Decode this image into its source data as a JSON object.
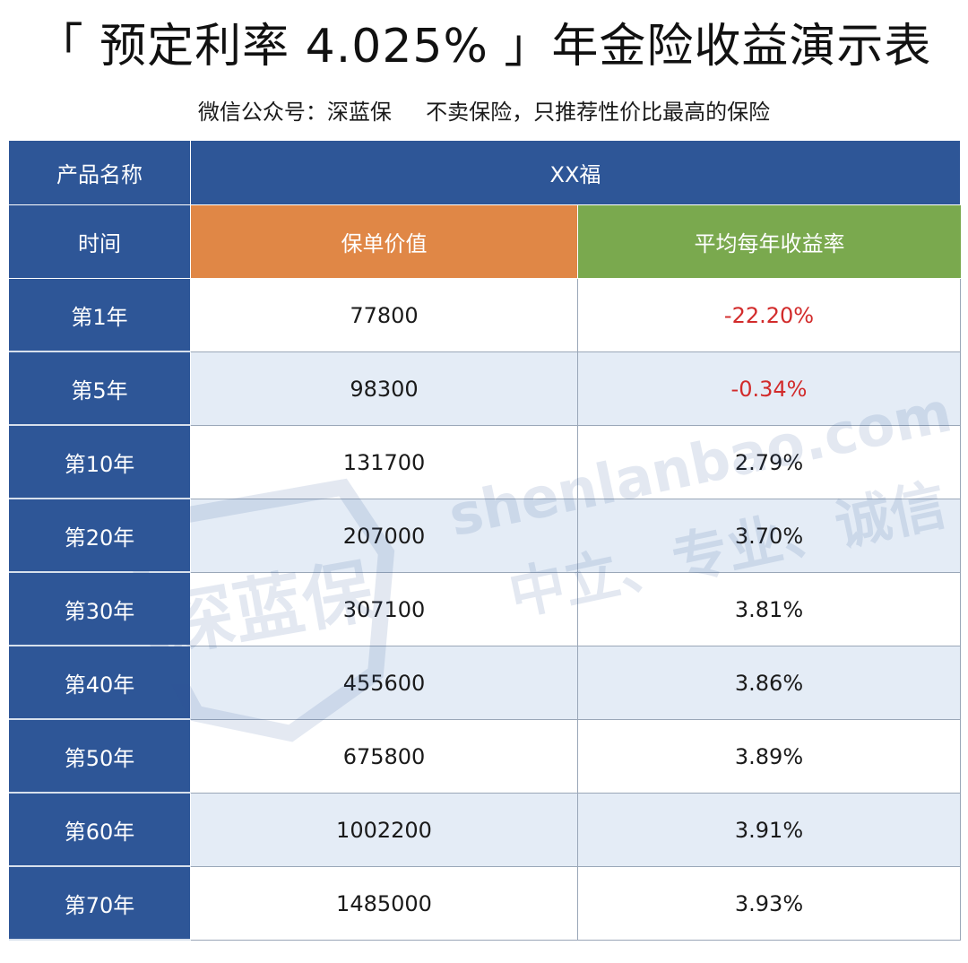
{
  "title": "「 预定利率 4.025% 」年金险收益演示表",
  "subtitle": "微信公众号：深蓝保     不卖保险，只推荐性价比最高的保险",
  "table": {
    "product_label": "产品名称",
    "product_name": "XX福",
    "time_label": "时间",
    "value_label": "保单价值",
    "rate_label": "平均每年收益率",
    "rows": [
      {
        "year": "第1年",
        "value": "77800",
        "rate": "-22.20%",
        "negative": true
      },
      {
        "year": "第5年",
        "value": "98300",
        "rate": "-0.34%",
        "negative": true
      },
      {
        "year": "第10年",
        "value": "131700",
        "rate": "2.79%",
        "negative": false
      },
      {
        "year": "第20年",
        "value": "207000",
        "rate": "3.70%",
        "negative": false
      },
      {
        "year": "第30年",
        "value": "307100",
        "rate": "3.81%",
        "negative": false
      },
      {
        "year": "第40年",
        "value": "455600",
        "rate": "3.86%",
        "negative": false
      },
      {
        "year": "第50年",
        "value": "675800",
        "rate": "3.89%",
        "negative": false
      },
      {
        "year": "第60年",
        "value": "1002200",
        "rate": "3.91%",
        "negative": false
      },
      {
        "year": "第70年",
        "value": "1485000",
        "rate": "3.93%",
        "negative": false
      }
    ]
  },
  "watermark": {
    "logo_text": "深蓝保",
    "line1": "shenlanbao.com",
    "line2": "中立、专业、诚信"
  },
  "colors": {
    "header_blue": "#2e5697",
    "orange": "#e08746",
    "green": "#7aa94e",
    "row_alt": "#e4ecf6",
    "negative": "#d22b2b"
  }
}
